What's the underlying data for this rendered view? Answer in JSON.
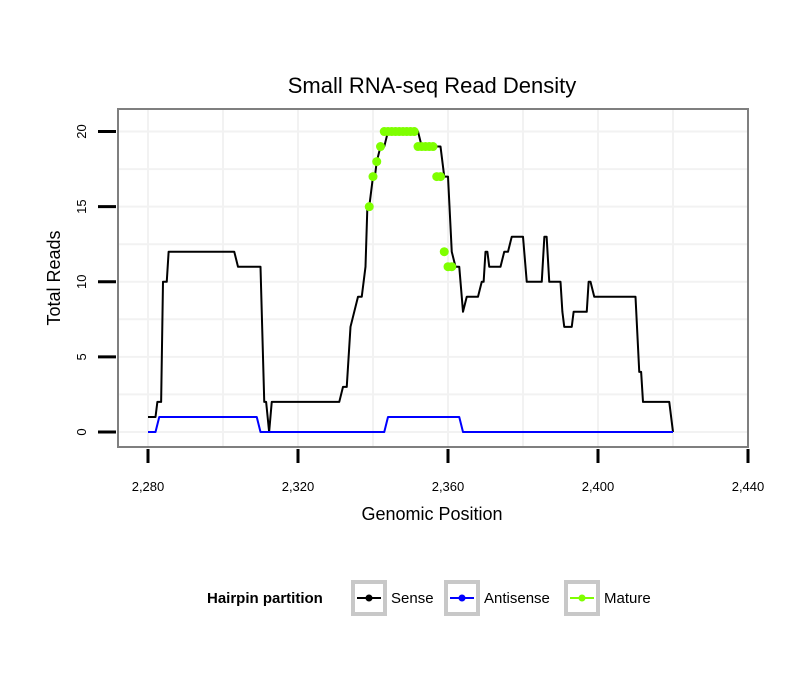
{
  "chart_data": {
    "type": "line",
    "title": "Small RNA-seq Read Density",
    "xlabel": "Genomic Position",
    "ylabel": "Total Reads",
    "xlim": [
      2272,
      2440
    ],
    "ylim": [
      -1,
      21.5
    ],
    "x_ticks": [
      2280,
      2320,
      2360,
      2400,
      2440
    ],
    "x_tick_labels": [
      "2,280",
      "2,320",
      "2,360",
      "2,400",
      "2,440"
    ],
    "y_ticks": [
      0,
      5,
      10,
      15,
      20
    ],
    "y_tick_labels": [
      "0",
      "5",
      "10",
      "15",
      "20"
    ],
    "grid": true,
    "legend": {
      "title": "Hairpin partition",
      "position": "bottom",
      "entries": [
        "Sense",
        "Antisense",
        "Mature"
      ]
    },
    "colors": {
      "Sense": "#000000",
      "Antisense": "#0000ff",
      "Mature": "#7fff00"
    },
    "series": [
      {
        "name": "Sense",
        "style": "line",
        "points": [
          [
            2280,
            1
          ],
          [
            2282,
            1
          ],
          [
            2282.5,
            2
          ],
          [
            2283.5,
            2
          ],
          [
            2284,
            10
          ],
          [
            2285,
            10
          ],
          [
            2285.5,
            12
          ],
          [
            2286,
            12
          ],
          [
            2303,
            12
          ],
          [
            2303.5,
            11.5
          ],
          [
            2304,
            11
          ],
          [
            2310,
            11
          ],
          [
            2311,
            2
          ],
          [
            2311.5,
            2
          ],
          [
            2312.3,
            0
          ],
          [
            2313,
            2
          ],
          [
            2314,
            2
          ],
          [
            2331,
            2
          ],
          [
            2332,
            3
          ],
          [
            2333,
            3
          ],
          [
            2334,
            7
          ],
          [
            2336,
            9
          ],
          [
            2337,
            9
          ],
          [
            2338,
            11
          ],
          [
            2338.5,
            15
          ],
          [
            2339,
            15
          ],
          [
            2340,
            17
          ],
          [
            2340.5,
            17
          ],
          [
            2341,
            18
          ],
          [
            2342,
            19
          ],
          [
            2343,
            19
          ],
          [
            2344,
            20
          ],
          [
            2352,
            20
          ],
          [
            2353,
            19
          ],
          [
            2358,
            19
          ],
          [
            2359,
            17
          ],
          [
            2360,
            17
          ],
          [
            2361,
            12
          ],
          [
            2362,
            11
          ],
          [
            2363,
            11
          ],
          [
            2364,
            8
          ],
          [
            2365,
            9
          ],
          [
            2368,
            9
          ],
          [
            2369,
            10
          ],
          [
            2369.5,
            10
          ],
          [
            2370,
            12
          ],
          [
            2370.5,
            12
          ],
          [
            2371,
            11
          ],
          [
            2374,
            11
          ],
          [
            2375,
            12
          ],
          [
            2376,
            12
          ],
          [
            2377,
            13
          ],
          [
            2380,
            13
          ],
          [
            2381,
            10
          ],
          [
            2385,
            10
          ],
          [
            2385.7,
            13
          ],
          [
            2386.3,
            13
          ],
          [
            2387,
            10
          ],
          [
            2390,
            10
          ],
          [
            2390.5,
            8
          ],
          [
            2391,
            7
          ],
          [
            2393,
            7
          ],
          [
            2393.5,
            8
          ],
          [
            2397,
            8
          ],
          [
            2397.5,
            10
          ],
          [
            2398,
            10
          ],
          [
            2399,
            9
          ],
          [
            2410,
            9
          ],
          [
            2411,
            4
          ],
          [
            2411.5,
            4
          ],
          [
            2412,
            2
          ],
          [
            2419,
            2
          ],
          [
            2420,
            0
          ]
        ]
      },
      {
        "name": "Antisense",
        "style": "line",
        "points": [
          [
            2280,
            0
          ],
          [
            2282,
            0
          ],
          [
            2283,
            1
          ],
          [
            2309,
            1
          ],
          [
            2310,
            0
          ],
          [
            2343,
            0
          ],
          [
            2344,
            1
          ],
          [
            2363,
            1
          ],
          [
            2364,
            0
          ],
          [
            2420,
            0
          ]
        ]
      },
      {
        "name": "Mature",
        "style": "points",
        "points": [
          [
            2339,
            15
          ],
          [
            2340,
            17
          ],
          [
            2341,
            18
          ],
          [
            2342,
            19
          ],
          [
            2343,
            20
          ],
          [
            2344,
            20
          ],
          [
            2345,
            20
          ],
          [
            2346,
            20
          ],
          [
            2347,
            20
          ],
          [
            2348,
            20
          ],
          [
            2349,
            20
          ],
          [
            2350,
            20
          ],
          [
            2351,
            20
          ],
          [
            2352,
            19
          ],
          [
            2353,
            19
          ],
          [
            2354,
            19
          ],
          [
            2355,
            19
          ],
          [
            2356,
            19
          ],
          [
            2357,
            17
          ],
          [
            2358,
            17
          ],
          [
            2359,
            12
          ],
          [
            2360,
            11
          ],
          [
            2361,
            11
          ]
        ]
      }
    ]
  }
}
